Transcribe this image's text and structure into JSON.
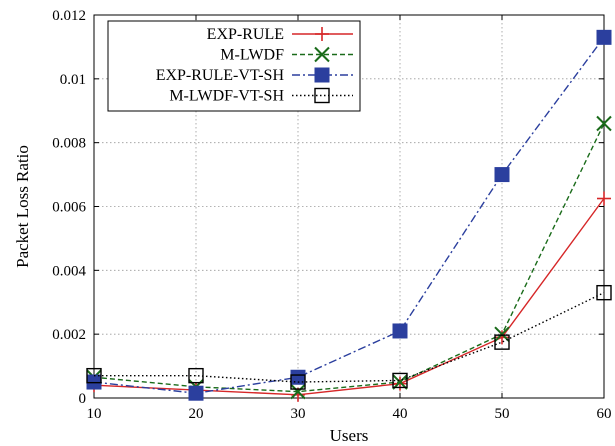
{
  "chart_data": {
    "type": "line",
    "xlabel": "Users",
    "ylabel": "Packet Loss Ratio",
    "x": [
      10,
      20,
      30,
      40,
      50,
      60
    ],
    "xlim": [
      10,
      60
    ],
    "ylim": [
      0,
      0.012
    ],
    "x_ticks": [
      "10",
      "20",
      "30",
      "40",
      "50",
      "60"
    ],
    "y_ticks": [
      "0",
      "0.002",
      "0.004",
      "0.006",
      "0.008",
      "0.01",
      "0.012"
    ],
    "grid": true,
    "legend_position": "top-left",
    "series": [
      {
        "name": "EXP-RULE",
        "values": [
          0.0004,
          0.00025,
          0.0001,
          0.00045,
          0.0019,
          0.00625
        ],
        "color": "#d62728",
        "marker": "plus",
        "dash": "solid"
      },
      {
        "name": "M-LWDF",
        "values": [
          0.00065,
          0.00035,
          0.0002,
          0.0005,
          0.002,
          0.0086
        ],
        "color": "#1a6b1a",
        "marker": "x",
        "dash": "dashed"
      },
      {
        "name": "EXP-RULE-VT-SH",
        "values": [
          0.0005,
          0.00015,
          0.00065,
          0.0021,
          0.007,
          0.0113
        ],
        "color": "#2b3f9e",
        "marker": "filled-square",
        "dash": "dashdot"
      },
      {
        "name": "M-LWDF-VT-SH",
        "values": [
          0.0007,
          0.0007,
          0.0005,
          0.00055,
          0.00175,
          0.0033
        ],
        "color": "#000000",
        "marker": "open-square",
        "dash": "dotted"
      }
    ]
  }
}
